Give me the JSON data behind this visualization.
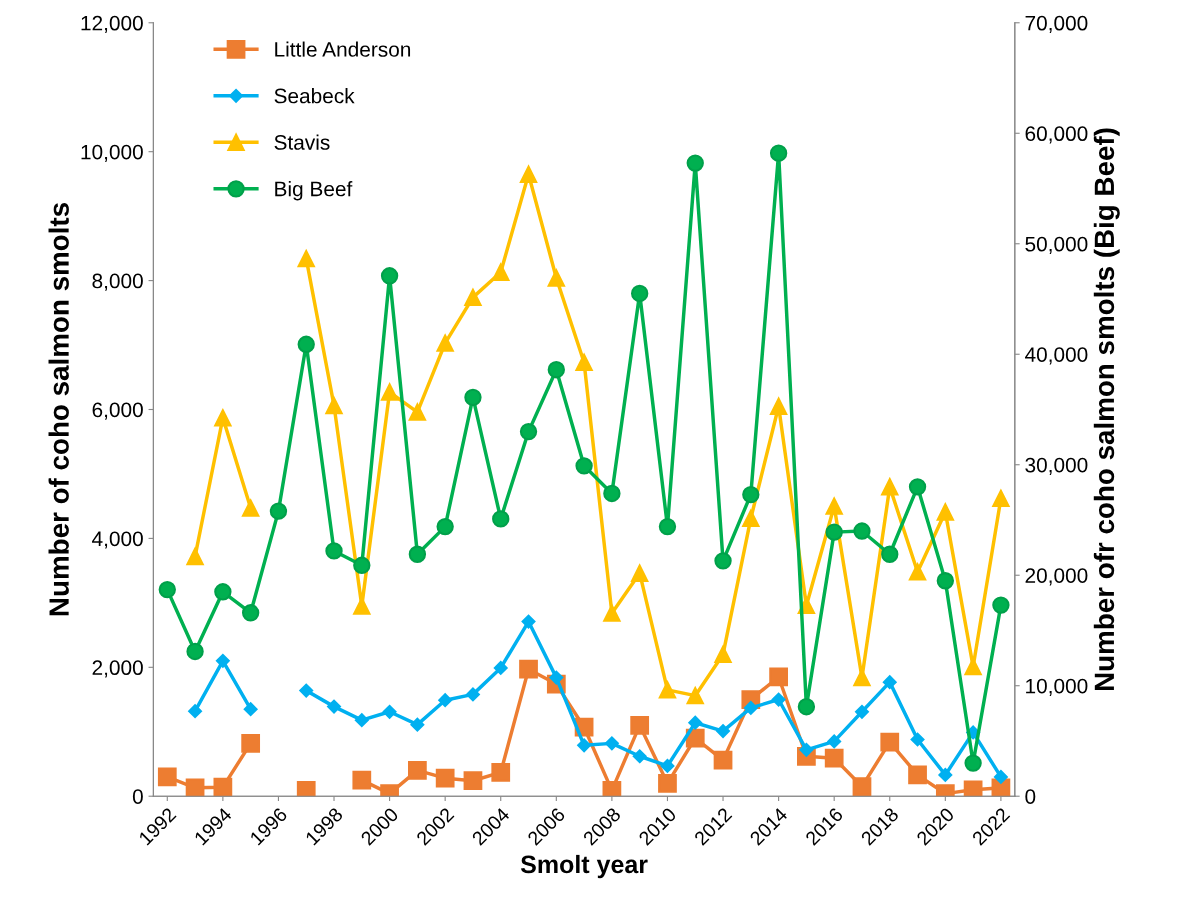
{
  "chart_data": {
    "type": "line",
    "xlabel": "Smolt year",
    "ylabel": "Number of coho salmon smolts",
    "y2label": "Number ofr coho salmon smolts (Big Beef)",
    "x": [
      1992,
      1993,
      1994,
      1995,
      1996,
      1997,
      1998,
      1999,
      2000,
      2001,
      2002,
      2003,
      2004,
      2005,
      2006,
      2007,
      2008,
      2009,
      2010,
      2011,
      2012,
      2013,
      2014,
      2015,
      2016,
      2017,
      2018,
      2019,
      2020,
      2021,
      2022
    ],
    "xlim": [
      1991.5,
      2022.5
    ],
    "xticks": [
      1992,
      1994,
      1996,
      1998,
      2000,
      2002,
      2004,
      2006,
      2008,
      2010,
      2012,
      2014,
      2016,
      2018,
      2020,
      2022
    ],
    "ylim": [
      0,
      12000
    ],
    "yticks": [
      {
        "value": 0,
        "label": "0"
      },
      {
        "value": 2000,
        "label": "2,000"
      },
      {
        "value": 4000,
        "label": "4,000"
      },
      {
        "value": 6000,
        "label": "6,000"
      },
      {
        "value": 8000,
        "label": "8,000"
      },
      {
        "value": 10000,
        "label": "10,000"
      },
      {
        "value": 12000,
        "label": "12,000"
      }
    ],
    "y2lim": [
      0,
      70000
    ],
    "y2ticks": [
      {
        "value": 0,
        "label": "0"
      },
      {
        "value": 10000,
        "label": "10,000"
      },
      {
        "value": 20000,
        "label": "20,000"
      },
      {
        "value": 30000,
        "label": "30,000"
      },
      {
        "value": 40000,
        "label": "40,000"
      },
      {
        "value": 50000,
        "label": "50,000"
      },
      {
        "value": 60000,
        "label": "60,000"
      },
      {
        "value": 70000,
        "label": "70,000"
      }
    ],
    "grid": false,
    "legend": "top left",
    "series": [
      {
        "name": "Little Anderson",
        "color": "#ed7d31",
        "marker": "square",
        "values": [
          300,
          130,
          140,
          820,
          null,
          90,
          null,
          250,
          40,
          400,
          280,
          240,
          370,
          1970,
          1740,
          1070,
          90,
          1100,
          200,
          900,
          560,
          1500,
          1850,
          620,
          590,
          150,
          840,
          330,
          40,
          100,
          130
        ]
      },
      {
        "name": "Seabeck",
        "color": "#00b0f0",
        "marker": "diamond",
        "values": [
          null,
          1320,
          2100,
          1350,
          null,
          1640,
          1390,
          1180,
          1310,
          1110,
          1490,
          1580,
          1990,
          2710,
          1840,
          790,
          820,
          620,
          470,
          1140,
          1010,
          1370,
          1500,
          720,
          850,
          1310,
          1770,
          880,
          330,
          990,
          300
        ]
      },
      {
        "name": "Stavis",
        "color": "#ffc000",
        "marker": "triangle",
        "values": [
          null,
          3720,
          5870,
          4470,
          null,
          8340,
          6060,
          2950,
          6270,
          5960,
          7030,
          7740,
          8130,
          9650,
          8040,
          6730,
          2840,
          3460,
          1650,
          1560,
          2200,
          4310,
          6050,
          2960,
          4500,
          1840,
          4800,
          3480,
          4410,
          2010,
          4620
        ]
      },
      {
        "name": "Big Beef",
        "color": "#00b050",
        "marker": "circle",
        "axis": "y2",
        "values": [
          18700,
          13100,
          18500,
          16600,
          25800,
          40900,
          22200,
          20900,
          47100,
          21900,
          24400,
          36100,
          25100,
          33000,
          38600,
          29900,
          27400,
          45500,
          24400,
          57300,
          21300,
          27300,
          58200,
          8100,
          23900,
          24000,
          21900,
          28000,
          19500,
          3000,
          17300
        ]
      }
    ]
  }
}
